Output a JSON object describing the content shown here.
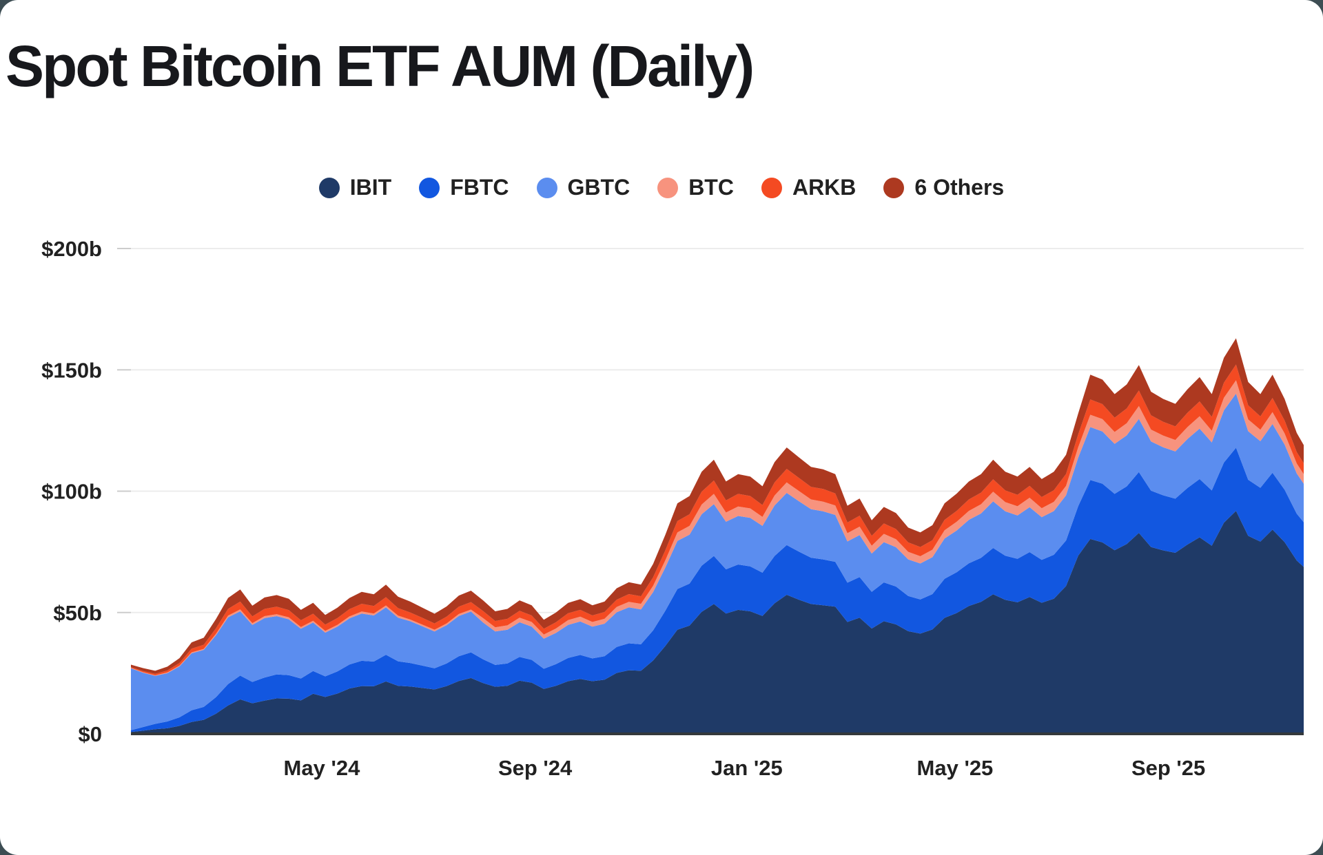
{
  "page": {
    "title": "Spot Bitcoin ETF AUM (Daily)"
  },
  "colors": {
    "background": "#3d4d53",
    "card": "#ffffff",
    "grid": "#ececec",
    "tick": "#cccccc",
    "axis_line": "#34383b",
    "text": "#212121"
  },
  "chart_data": {
    "type": "area",
    "stacked": true,
    "title": "Spot Bitcoin ETF AUM (Daily)",
    "unit": "USD billions",
    "grid": "horizontal",
    "legend_position": "top",
    "x_domain": [
      "2024-01-12",
      "2025-11-18"
    ],
    "ylim": [
      0,
      200
    ],
    "y_ticks": [
      {
        "label": "$0",
        "value": 0
      },
      {
        "label": "$50b",
        "value": 50
      },
      {
        "label": "$100b",
        "value": 100
      },
      {
        "label": "$150b",
        "value": 150
      },
      {
        "label": "$200b",
        "value": 200
      }
    ],
    "x_ticks": [
      {
        "label": "May '24",
        "date": "2024-05-01"
      },
      {
        "label": "Sep '24",
        "date": "2024-09-01"
      },
      {
        "label": "Jan '25",
        "date": "2025-01-01"
      },
      {
        "label": "May '25",
        "date": "2025-05-01"
      },
      {
        "label": "Sep '25",
        "date": "2025-09-01"
      }
    ],
    "dates": [
      "2024-01-12",
      "2024-01-19",
      "2024-01-26",
      "2024-02-02",
      "2024-02-09",
      "2024-02-16",
      "2024-02-23",
      "2024-03-01",
      "2024-03-08",
      "2024-03-15",
      "2024-03-22",
      "2024-03-29",
      "2024-04-05",
      "2024-04-12",
      "2024-04-19",
      "2024-04-26",
      "2024-05-03",
      "2024-05-10",
      "2024-05-17",
      "2024-05-24",
      "2024-05-31",
      "2024-06-07",
      "2024-06-14",
      "2024-06-21",
      "2024-06-28",
      "2024-07-05",
      "2024-07-12",
      "2024-07-19",
      "2024-07-26",
      "2024-08-02",
      "2024-08-09",
      "2024-08-16",
      "2024-08-23",
      "2024-08-30",
      "2024-09-06",
      "2024-09-13",
      "2024-09-20",
      "2024-09-27",
      "2024-10-04",
      "2024-10-11",
      "2024-10-18",
      "2024-10-25",
      "2024-11-01",
      "2024-11-08",
      "2024-11-15",
      "2024-11-22",
      "2024-11-29",
      "2024-12-06",
      "2024-12-13",
      "2024-12-20",
      "2024-12-27",
      "2025-01-03",
      "2025-01-10",
      "2025-01-17",
      "2025-01-24",
      "2025-01-31",
      "2025-02-07",
      "2025-02-14",
      "2025-02-21",
      "2025-02-28",
      "2025-03-07",
      "2025-03-14",
      "2025-03-21",
      "2025-03-28",
      "2025-04-04",
      "2025-04-11",
      "2025-04-18",
      "2025-04-25",
      "2025-05-02",
      "2025-05-09",
      "2025-05-16",
      "2025-05-23",
      "2025-05-30",
      "2025-06-06",
      "2025-06-13",
      "2025-06-20",
      "2025-06-27",
      "2025-07-04",
      "2025-07-11",
      "2025-07-18",
      "2025-07-25",
      "2025-08-01",
      "2025-08-08",
      "2025-08-15",
      "2025-08-22",
      "2025-08-29",
      "2025-09-05",
      "2025-09-12",
      "2025-09-19",
      "2025-09-26",
      "2025-10-03",
      "2025-10-10",
      "2025-10-17",
      "2025-10-24",
      "2025-10-31",
      "2025-11-07",
      "2025-11-14",
      "2025-11-18"
    ],
    "series": [
      {
        "name": "IBIT",
        "color": "#1f3a67",
        "values": [
          0.8,
          1.3,
          1.9,
          2.3,
          3.3,
          4.9,
          5.8,
          8.3,
          11.7,
          14.2,
          12.6,
          13.7,
          14.6,
          14.5,
          13.8,
          16.5,
          15.2,
          16.6,
          18.7,
          19.7,
          19.6,
          21.6,
          19.8,
          19.5,
          18.9,
          18.3,
          19.7,
          21.8,
          23.0,
          20.9,
          19.4,
          19.8,
          21.9,
          21.1,
          18.5,
          19.8,
          21.7,
          22.6,
          21.7,
          22.3,
          25.1,
          26.2,
          26.0,
          30.2,
          36.2,
          42.9,
          44.6,
          50.3,
          53.5,
          49.6,
          51.1,
          50.5,
          48.6,
          53.8,
          57.3,
          55.3,
          53.5,
          53.0,
          52.4,
          46.1,
          47.9,
          43.4,
          46.4,
          45.1,
          42.3,
          41.3,
          43.0,
          47.8,
          49.8,
          52.7,
          54.4,
          57.5,
          55.2,
          54.2,
          56.4,
          54.0,
          55.7,
          60.9,
          73.4,
          80.3,
          78.9,
          75.7,
          78.2,
          82.8,
          77.0,
          75.6,
          74.6,
          78.0,
          81.0,
          77.5,
          87.0,
          91.9,
          81.6,
          79.2,
          84.2,
          79.0,
          71.4,
          68.8
        ]
      },
      {
        "name": "FBTC",
        "color": "#1257e0",
        "values": [
          0.7,
          1.5,
          2.2,
          2.8,
          3.5,
          4.8,
          5.3,
          6.8,
          8.8,
          9.8,
          8.8,
          9.5,
          9.9,
          9.7,
          9.0,
          9.4,
          8.5,
          9.1,
          9.9,
          10.4,
          10.2,
          11.0,
          10.1,
          9.7,
          9.2,
          8.7,
          9.3,
          10.2,
          10.6,
          9.8,
          9.0,
          9.2,
          9.8,
          9.4,
          8.3,
          8.9,
          9.6,
          9.9,
          9.4,
          9.7,
          10.7,
          11.1,
          10.9,
          12.4,
          14.5,
          16.8,
          17.3,
          19.0,
          19.8,
          18.2,
          18.7,
          18.5,
          17.8,
          19.5,
          20.5,
          19.8,
          19.1,
          18.9,
          18.5,
          16.2,
          16.7,
          15.1,
          16.0,
          15.6,
          14.5,
          14.1,
          14.6,
          16.1,
          16.8,
          17.6,
          18.1,
          19.1,
          18.2,
          17.9,
          18.5,
          17.7,
          18.1,
          18.8,
          20.4,
          24.3,
          24.2,
          23.2,
          23.8,
          25.1,
          23.2,
          22.7,
          22.3,
          23.3,
          24.0,
          22.8,
          24.8,
          26.0,
          23.1,
          22.2,
          23.4,
          21.6,
          19.3,
          18.4
        ]
      },
      {
        "name": "GBTC",
        "color": "#5b8def",
        "values": [
          25.5,
          22.4,
          19.8,
          19.9,
          21.0,
          23.5,
          23.5,
          25.5,
          27.5,
          26.5,
          23.5,
          24.5,
          24.0,
          23.0,
          20.5,
          20.0,
          18.0,
          18.5,
          19.0,
          19.5,
          19.0,
          19.5,
          18.0,
          17.2,
          16.2,
          15.2,
          15.8,
          16.6,
          16.8,
          15.2,
          13.8,
          13.9,
          14.3,
          13.7,
          12.4,
          12.9,
          13.6,
          13.8,
          13.1,
          13.4,
          14.3,
          14.8,
          14.4,
          15.8,
          17.8,
          19.8,
          20.2,
          21.2,
          21.4,
          19.6,
          20.0,
          20.0,
          19.3,
          20.8,
          21.5,
          20.8,
          20.0,
          19.8,
          19.3,
          17.0,
          17.3,
          15.8,
          16.6,
          16.2,
          15.1,
          14.8,
          15.2,
          16.6,
          17.2,
          17.9,
          18.3,
          19.2,
          18.3,
          17.9,
          18.5,
          17.6,
          18.0,
          18.6,
          20.0,
          21.8,
          21.5,
          20.6,
          21.0,
          21.9,
          20.3,
          19.8,
          19.5,
          20.2,
          20.8,
          19.8,
          21.5,
          22.3,
          20.0,
          19.2,
          20.1,
          18.6,
          16.6,
          15.9
        ]
      },
      {
        "name": "BTC",
        "color": "#f7937e",
        "values": [
          0.2,
          0.2,
          0.2,
          0.3,
          0.3,
          0.4,
          0.4,
          0.6,
          0.7,
          0.8,
          0.7,
          0.8,
          0.8,
          0.8,
          0.7,
          0.7,
          0.7,
          0.7,
          0.8,
          0.8,
          0.8,
          0.8,
          0.8,
          0.7,
          0.7,
          0.7,
          0.7,
          0.8,
          0.8,
          1.8,
          1.7,
          1.8,
          1.9,
          1.9,
          1.7,
          1.8,
          2.0,
          2.0,
          1.9,
          2.0,
          2.2,
          2.3,
          2.3,
          2.6,
          3.0,
          3.5,
          3.6,
          4.0,
          4.2,
          3.8,
          3.9,
          3.9,
          3.7,
          4.1,
          4.3,
          4.2,
          4.0,
          4.0,
          3.9,
          3.4,
          3.5,
          3.2,
          3.4,
          3.3,
          3.1,
          3.0,
          3.1,
          3.4,
          3.6,
          3.7,
          3.8,
          4.0,
          3.8,
          3.8,
          3.9,
          3.7,
          3.8,
          3.9,
          4.3,
          5.1,
          5.1,
          4.9,
          5.0,
          5.3,
          4.9,
          4.8,
          4.7,
          4.9,
          5.1,
          4.8,
          5.2,
          5.5,
          4.9,
          4.7,
          4.9,
          4.6,
          4.1,
          3.9
        ]
      },
      {
        "name": "ARKB",
        "color": "#f44a22",
        "values": [
          0.3,
          0.5,
          0.6,
          0.8,
          1.1,
          1.5,
          1.7,
          2.3,
          2.8,
          3.2,
          2.8,
          3.0,
          3.1,
          3.0,
          2.8,
          2.9,
          2.6,
          2.8,
          3.0,
          3.2,
          3.1,
          3.4,
          3.1,
          2.9,
          2.8,
          2.6,
          2.8,
          3.0,
          3.1,
          2.9,
          2.6,
          2.7,
          2.8,
          2.7,
          2.4,
          2.6,
          2.8,
          2.8,
          2.7,
          2.8,
          3.0,
          3.2,
          3.1,
          3.5,
          4.1,
          4.7,
          4.8,
          5.3,
          5.5,
          5.0,
          5.2,
          5.1,
          4.9,
          5.4,
          5.6,
          5.4,
          5.2,
          5.2,
          5.0,
          4.4,
          4.5,
          4.1,
          4.3,
          4.2,
          3.9,
          3.8,
          3.9,
          4.3,
          4.5,
          4.7,
          4.8,
          5.1,
          4.8,
          4.7,
          4.9,
          4.6,
          4.8,
          4.9,
          5.3,
          6.3,
          6.2,
          5.9,
          6.1,
          6.4,
          5.9,
          5.7,
          5.6,
          5.9,
          6.1,
          5.7,
          6.2,
          6.5,
          5.8,
          5.5,
          5.8,
          5.3,
          4.7,
          4.5
        ]
      },
      {
        "name": "6 Others",
        "color": "#ad3920",
        "values": [
          1.0,
          1.2,
          1.3,
          1.6,
          2.0,
          2.6,
          2.9,
          3.8,
          4.5,
          5.0,
          4.4,
          4.7,
          4.8,
          4.7,
          4.3,
          4.5,
          4.0,
          4.3,
          4.6,
          4.9,
          4.8,
          5.2,
          4.7,
          4.5,
          4.2,
          4.0,
          4.2,
          4.6,
          4.7,
          4.4,
          4.0,
          4.1,
          4.3,
          4.2,
          3.7,
          4.0,
          4.3,
          4.4,
          4.2,
          4.3,
          4.7,
          4.9,
          4.8,
          5.5,
          6.4,
          7.3,
          7.5,
          8.2,
          8.6,
          7.8,
          8.1,
          8.0,
          7.7,
          8.4,
          8.8,
          8.5,
          8.2,
          8.1,
          7.9,
          6.9,
          7.1,
          6.4,
          6.8,
          6.6,
          6.1,
          6.0,
          6.2,
          6.8,
          7.1,
          7.4,
          7.6,
          8.1,
          7.7,
          7.5,
          7.8,
          7.4,
          7.6,
          7.9,
          8.6,
          10.2,
          10.1,
          9.7,
          9.9,
          10.5,
          9.7,
          9.4,
          9.3,
          9.7,
          10.0,
          9.4,
          10.3,
          10.8,
          9.6,
          9.2,
          9.6,
          8.9,
          7.9,
          7.5
        ]
      }
    ]
  }
}
